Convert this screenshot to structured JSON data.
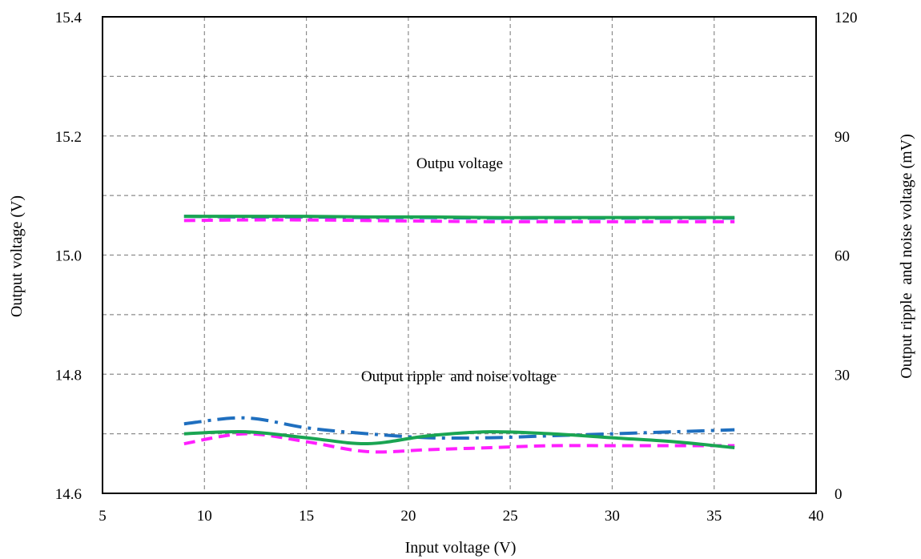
{
  "chart_data": {
    "type": "line",
    "xlabel": "Input voltage (V)",
    "ylabel": "Output voltage (V)",
    "y2label": "Output ripple  and noise voltage (mV)",
    "xlim": [
      5,
      40
    ],
    "ylim": [
      14.6,
      15.4
    ],
    "y2lim": [
      0,
      120
    ],
    "grid": true,
    "x_ticks": [
      "5",
      "10",
      "15",
      "20",
      "25",
      "30",
      "35",
      "40"
    ],
    "y_ticks": [
      "14.6",
      "14.8",
      "15.0",
      "15.2",
      "15.4"
    ],
    "y2_ticks": [
      "0",
      "30",
      "60",
      "90",
      "120"
    ],
    "annotations": {
      "output_voltage": "Outpu voltage",
      "ripple": "Output ripple  and noise voltage"
    },
    "colors": {
      "blue": "#1f6fbf",
      "magenta": "#ff1fff",
      "green": "#1aa552"
    },
    "series": [
      {
        "axis": "left",
        "style": "dashdot",
        "color": "#1f6fbf",
        "x": [
          9,
          12,
          15,
          18,
          21,
          24,
          27,
          30,
          33,
          36
        ],
        "values": [
          15.065,
          15.064,
          15.064,
          15.063,
          15.063,
          15.062,
          15.062,
          15.062,
          15.062,
          15.062
        ]
      },
      {
        "axis": "left",
        "style": "dash",
        "color": "#ff1fff",
        "x": [
          9,
          12,
          15,
          18,
          21,
          24,
          27,
          30,
          33,
          36
        ],
        "values": [
          15.058,
          15.059,
          15.059,
          15.058,
          15.057,
          15.056,
          15.056,
          15.056,
          15.056,
          15.056
        ]
      },
      {
        "axis": "left",
        "style": "solid",
        "color": "#1aa552",
        "x": [
          9,
          12,
          15,
          18,
          21,
          24,
          27,
          30,
          33,
          36
        ],
        "values": [
          15.065,
          15.065,
          15.065,
          15.064,
          15.064,
          15.063,
          15.063,
          15.063,
          15.063,
          15.063
        ]
      },
      {
        "axis": "right",
        "style": "dashdot",
        "color": "#1f6fbf",
        "x": [
          9,
          12,
          15,
          18,
          21,
          24,
          27,
          30,
          33,
          36
        ],
        "values": [
          17.5,
          19,
          16.5,
          15,
          14,
          14,
          14.5,
          15,
          15.5,
          16
        ]
      },
      {
        "axis": "right",
        "style": "dash",
        "color": "#ff1fff",
        "x": [
          9,
          12,
          15,
          18,
          21,
          24,
          27,
          30,
          33,
          36
        ],
        "values": [
          12.5,
          15,
          13,
          10.5,
          11,
          11.5,
          12,
          12,
          12,
          12
        ]
      },
      {
        "axis": "right",
        "style": "solid",
        "color": "#1aa552",
        "x": [
          9,
          12,
          15,
          18,
          21,
          24,
          27,
          30,
          33,
          36
        ],
        "values": [
          15,
          15.5,
          14,
          12.5,
          14.5,
          15.5,
          15,
          14,
          13,
          11.5
        ]
      }
    ]
  }
}
